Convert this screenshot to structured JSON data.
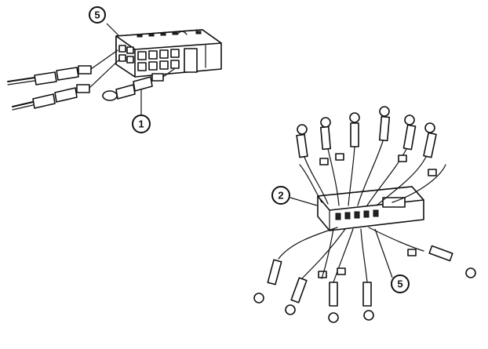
{
  "callouts": {
    "connector_top": "5",
    "contact": "1",
    "wire": "2",
    "connector_bottom": "5"
  },
  "colors": {
    "ink": "#111111",
    "background": "#ffffff"
  }
}
